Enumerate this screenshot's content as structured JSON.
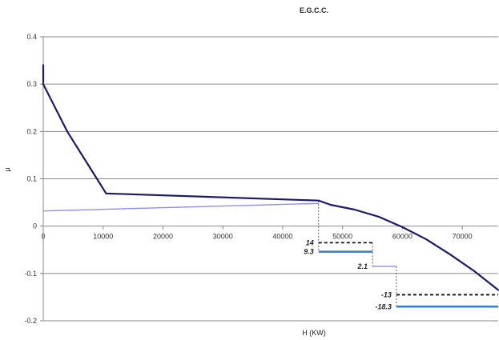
{
  "chart_data": {
    "type": "line",
    "title": "E.G.C.C.",
    "xlabel": "H (KW)",
    "ylabel": "μ",
    "xlim": [
      0,
      76000
    ],
    "ylim": [
      -0.2,
      0.4
    ],
    "x_ticks": [
      0,
      10000,
      20000,
      30000,
      40000,
      50000,
      60000,
      70000
    ],
    "y_ticks": [
      -0.2,
      -0.1,
      0,
      0.1,
      0.2,
      0.3,
      0.4
    ],
    "x_tick_labels": [
      "0",
      "10000",
      "20000",
      "30000",
      "40000",
      "50000",
      "60000",
      "70000"
    ],
    "y_tick_labels": [
      "-0.2",
      "-0.1",
      "0",
      "0.1",
      "0.2",
      "0.3",
      "0.4"
    ],
    "grid": "horizontal",
    "colors": {
      "main": "#1b1b6b",
      "light": "#8c8cf2",
      "blue": "#2f7fd0",
      "dashed": "#111111"
    },
    "series": [
      {
        "style": "dark-solid",
        "x": [
          0,
          0,
          4000,
          10500,
          46000,
          48000,
          52000,
          56000,
          60000,
          64000,
          68000,
          72000,
          76000
        ],
        "y": [
          0.34,
          0.3,
          0.2,
          0.069,
          0.054,
          0.045,
          0.035,
          0.02,
          -0.002,
          -0.028,
          -0.06,
          -0.095,
          -0.135
        ]
      },
      {
        "style": "light-solid",
        "x": [
          0,
          46000
        ],
        "y": [
          0.032,
          0.048
        ]
      }
    ],
    "steps": [
      {
        "style": "black-dashed",
        "x": [
          46000,
          55000
        ],
        "y": -0.035,
        "label": "14"
      },
      {
        "style": "blue-solid",
        "x": [
          46000,
          55000
        ],
        "y": -0.054,
        "label": "9.3"
      },
      {
        "style": "light-solid",
        "x": [
          55000,
          59000
        ],
        "y": -0.085,
        "label": "2.1"
      },
      {
        "style": "black-dashed",
        "x": [
          59000,
          76000
        ],
        "y": -0.145,
        "label": "-13"
      },
      {
        "style": "blue-solid",
        "x": [
          59000,
          76000
        ],
        "y": -0.17,
        "label": "-18.3"
      }
    ],
    "connectors": [
      {
        "x": [
          46000,
          46000
        ],
        "y": [
          0.054,
          -0.054
        ]
      },
      {
        "x": [
          55000,
          55000
        ],
        "y": [
          -0.035,
          -0.085
        ]
      },
      {
        "x": [
          59000,
          59000
        ],
        "y": [
          -0.085,
          -0.17
        ]
      }
    ]
  }
}
